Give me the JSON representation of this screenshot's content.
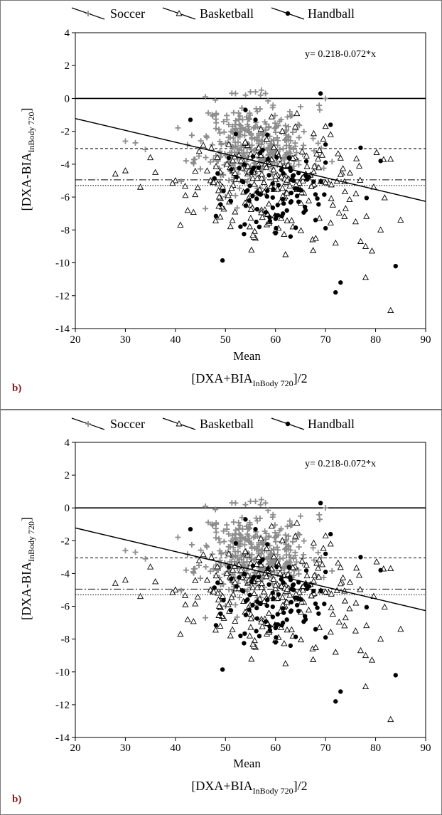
{
  "chart_data": [
    {
      "type": "scatter",
      "panel_label": "b)",
      "xlabel": "Mean",
      "xlabel_formula": {
        "main": "[DXA+BIA",
        "sub": "InBody 720",
        "suffix": "]/2"
      },
      "ylabel_formula": {
        "main": "[DXA-BIA",
        "sub": "InBody 720",
        "suffix": "]"
      },
      "equation": "y= 0.218-0.072*x",
      "xlim": [
        20,
        90
      ],
      "ylim": [
        -14,
        4
      ],
      "xticks": [
        20,
        30,
        40,
        50,
        60,
        70,
        80,
        90
      ],
      "yticks": [
        4,
        2,
        0,
        -2,
        -4,
        -6,
        -8,
        -10,
        -12,
        -14
      ],
      "legend": {
        "placement": "top",
        "entries": [
          "Soccer",
          "Basketball",
          "Handball"
        ]
      },
      "reference_lines": {
        "zero": 0,
        "mean_dashed": -3.05,
        "dashdot": -4.95,
        "dotted": -5.3
      },
      "regression": {
        "intercept": 0.218,
        "slope": -0.072
      },
      "series": [
        {
          "name": "Soccer",
          "marker": "plus",
          "color": "#8c8c8c",
          "center": [
            56,
            -2.9
          ],
          "spread": [
            5.5,
            1.25
          ],
          "count": 380,
          "seed": 11,
          "points": [
            [
              52,
              0.3
            ],
            [
              54,
              0.2
            ],
            [
              55,
              0.4
            ],
            [
              56,
              0.4
            ],
            [
              57,
              0.2
            ],
            [
              58,
              0.3
            ],
            [
              46,
              0.1
            ],
            [
              48,
              -0.1
            ],
            [
              70,
              0.0
            ],
            [
              65,
              -0.5
            ],
            [
              32,
              -2.7
            ],
            [
              34,
              -3.1
            ],
            [
              30,
              -2.6
            ],
            [
              46,
              -6.7
            ],
            [
              67,
              -4.7
            ]
          ]
        },
        {
          "name": "Basketball",
          "marker": "triangle",
          "color": "#000000",
          "center": [
            58,
            -5.1
          ],
          "spread": [
            9,
            1.6
          ],
          "count": 210,
          "seed": 29,
          "points": [
            [
              28,
              -4.6
            ],
            [
              30,
              -4.4
            ],
            [
              33,
              -5.4
            ],
            [
              35,
              -3.6
            ],
            [
              36,
              -4.5
            ],
            [
              40,
              -5.0
            ],
            [
              41,
              -7.7
            ],
            [
              42,
              -5.9
            ],
            [
              47,
              -5.0
            ],
            [
              51,
              -7.8
            ],
            [
              56,
              -8.5
            ],
            [
              62,
              -9.5
            ],
            [
              70,
              -1.7
            ],
            [
              71,
              -2.2
            ],
            [
              72,
              -8.8
            ],
            [
              74,
              -6.7
            ],
            [
              76,
              -7.5
            ],
            [
              77,
              -8.7
            ],
            [
              78,
              -9.0
            ],
            [
              78,
              -10.9
            ],
            [
              81,
              -8.0
            ],
            [
              83,
              -3.7
            ],
            [
              83,
              -12.9
            ],
            [
              85,
              -7.4
            ]
          ]
        },
        {
          "name": "Handball",
          "marker": "circle",
          "color": "#000000",
          "center": [
            59,
            -5.6
          ],
          "spread": [
            6,
            1.35
          ],
          "count": 95,
          "seed": 47,
          "points": [
            [
              43,
              -1.3
            ],
            [
              54,
              -0.7
            ],
            [
              56,
              -1.3
            ],
            [
              69,
              0.3
            ],
            [
              71,
              -1.6
            ],
            [
              70,
              -2.8
            ],
            [
              70,
              -3.9
            ],
            [
              77,
              -3.0
            ],
            [
              81,
              -3.8
            ],
            [
              72,
              -11.8
            ],
            [
              73,
              -11.2
            ],
            [
              84,
              -10.2
            ],
            [
              63,
              -8.4
            ],
            [
              60,
              -8.2
            ],
            [
              68,
              -7.4
            ],
            [
              53,
              -7.8
            ],
            [
              70,
              -7.9
            ],
            [
              66,
              -6.8
            ]
          ]
        }
      ]
    },
    {
      "type": "scatter",
      "panel_label": "b)",
      "xlabel": "Mean",
      "xlabel_formula": {
        "main": "[DXA+BIA",
        "sub": "InBody 720",
        "suffix": "]/2"
      },
      "ylabel_formula": {
        "main": "[DXA-BIA",
        "sub": "InBody 720",
        "suffix": "]"
      },
      "equation": "y= 0.218-0.072*x",
      "xlim": [
        20,
        90
      ],
      "ylim": [
        -14,
        4
      ],
      "xticks": [
        20,
        30,
        40,
        50,
        60,
        70,
        80,
        90
      ],
      "yticks": [
        4,
        2,
        0,
        -2,
        -4,
        -6,
        -8,
        -10,
        -12,
        -14
      ],
      "legend": {
        "placement": "top",
        "entries": [
          "Soccer",
          "Basketball",
          "Handball"
        ]
      },
      "reference_lines": {
        "zero": 0,
        "mean_dashed": -3.05,
        "dashdot": -4.95,
        "dotted": -5.3
      },
      "regression": {
        "intercept": 0.218,
        "slope": -0.072
      },
      "series": [
        {
          "name": "Soccer",
          "marker": "plus",
          "color": "#8c8c8c",
          "center": [
            56,
            -2.9
          ],
          "spread": [
            5.5,
            1.25
          ],
          "count": 380,
          "seed": 11,
          "points": [
            [
              52,
              0.3
            ],
            [
              54,
              0.2
            ],
            [
              55,
              0.4
            ],
            [
              56,
              0.4
            ],
            [
              57,
              0.2
            ],
            [
              58,
              0.3
            ],
            [
              46,
              0.1
            ],
            [
              48,
              -0.1
            ],
            [
              70,
              0.0
            ],
            [
              65,
              -0.5
            ],
            [
              32,
              -2.7
            ],
            [
              34,
              -3.1
            ],
            [
              30,
              -2.6
            ],
            [
              46,
              -6.7
            ],
            [
              67,
              -4.7
            ]
          ]
        },
        {
          "name": "Basketball",
          "marker": "triangle",
          "color": "#000000",
          "center": [
            58,
            -5.1
          ],
          "spread": [
            9,
            1.6
          ],
          "count": 210,
          "seed": 29,
          "points": [
            [
              28,
              -4.6
            ],
            [
              30,
              -4.4
            ],
            [
              33,
              -5.4
            ],
            [
              35,
              -3.6
            ],
            [
              36,
              -4.5
            ],
            [
              40,
              -5.0
            ],
            [
              41,
              -7.7
            ],
            [
              42,
              -5.9
            ],
            [
              47,
              -5.0
            ],
            [
              51,
              -7.8
            ],
            [
              56,
              -8.5
            ],
            [
              62,
              -9.5
            ],
            [
              70,
              -1.7
            ],
            [
              71,
              -2.2
            ],
            [
              72,
              -8.8
            ],
            [
              74,
              -6.7
            ],
            [
              76,
              -7.5
            ],
            [
              77,
              -8.7
            ],
            [
              78,
              -9.0
            ],
            [
              78,
              -10.9
            ],
            [
              81,
              -8.0
            ],
            [
              83,
              -3.7
            ],
            [
              83,
              -12.9
            ],
            [
              85,
              -7.4
            ]
          ]
        },
        {
          "name": "Handball",
          "marker": "circle",
          "color": "#000000",
          "center": [
            59,
            -5.6
          ],
          "spread": [
            6,
            1.35
          ],
          "count": 95,
          "seed": 47,
          "points": [
            [
              43,
              -1.3
            ],
            [
              54,
              -0.7
            ],
            [
              56,
              -1.3
            ],
            [
              69,
              0.3
            ],
            [
              71,
              -1.6
            ],
            [
              70,
              -2.8
            ],
            [
              70,
              -3.9
            ],
            [
              77,
              -3.0
            ],
            [
              81,
              -3.8
            ],
            [
              72,
              -11.8
            ],
            [
              73,
              -11.2
            ],
            [
              84,
              -10.2
            ],
            [
              63,
              -8.4
            ],
            [
              60,
              -8.2
            ],
            [
              68,
              -7.4
            ],
            [
              53,
              -7.8
            ],
            [
              70,
              -7.9
            ],
            [
              66,
              -6.8
            ]
          ]
        }
      ]
    }
  ]
}
